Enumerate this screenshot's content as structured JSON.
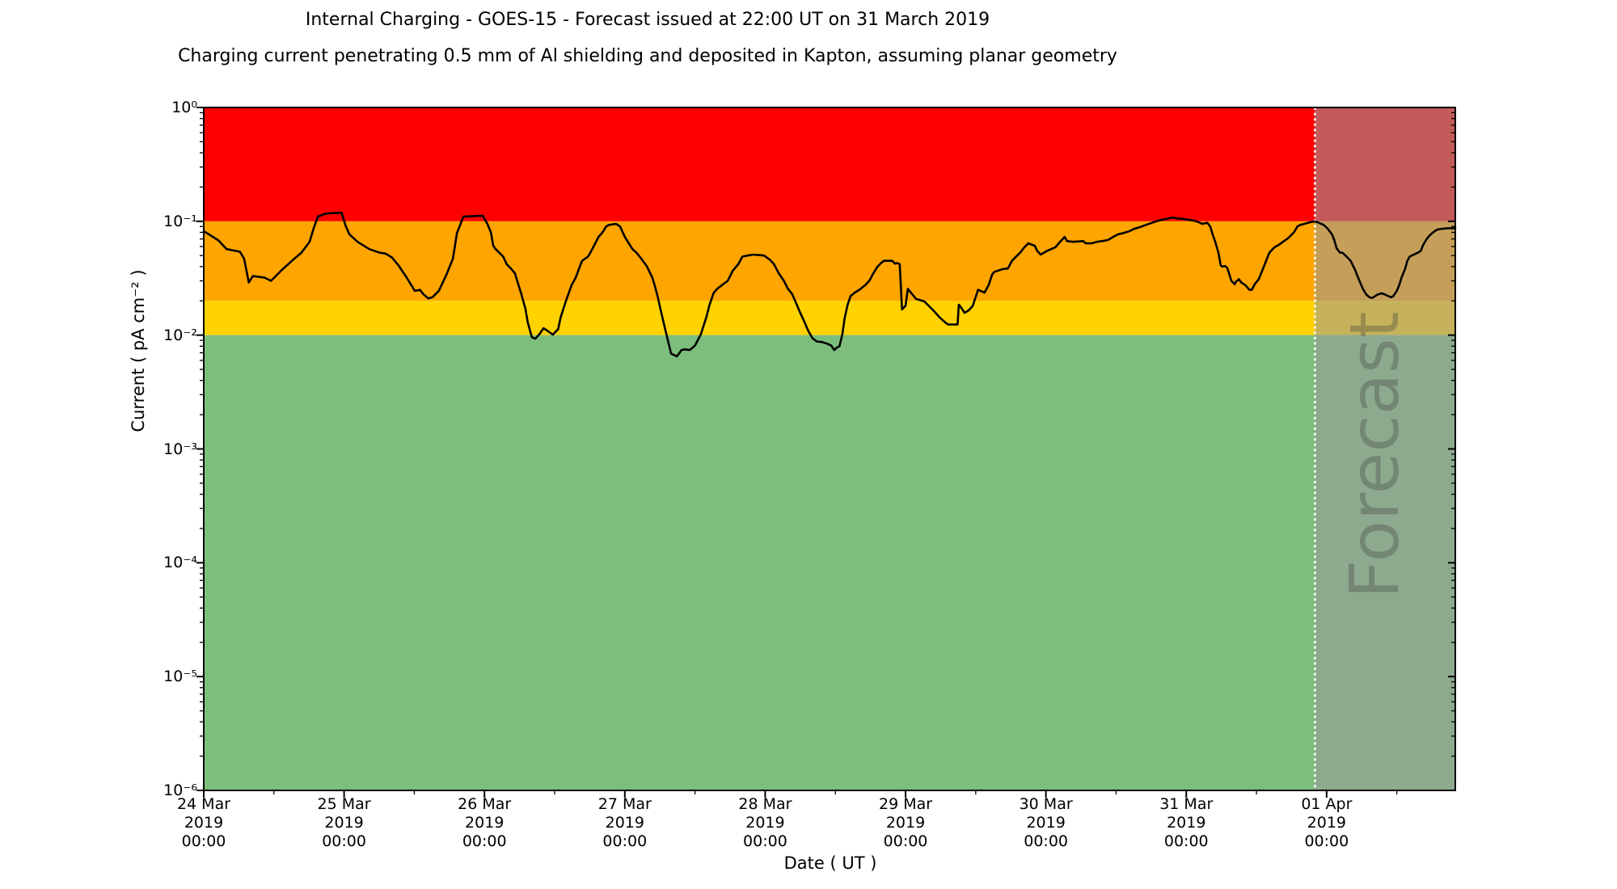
{
  "chart_data": {
    "type": "line",
    "title": "Internal Charging - GOES-15 - Forecast issued at 22:00 UT on 31 March 2019",
    "subtitle": "Charging current penetrating 0.5 mm of Al shielding and deposited in Kapton, assuming planar geometry",
    "xlabel": "Date ( UT )",
    "ylabel": "Current ( pA cm⁻² )",
    "y_scale": "log",
    "ylim": [
      1e-06,
      1
    ],
    "x_start": "24 Mar 2019 00:00 UT",
    "x_end": "01 Apr 2019 22:00 UT",
    "x_range_hours": 214,
    "grid": "off",
    "legend": "none",
    "y_ticks": [
      {
        "value": 1,
        "label": "10⁰"
      },
      {
        "value": 0.1,
        "label": "10⁻¹"
      },
      {
        "value": 0.01,
        "label": "10⁻²"
      },
      {
        "value": 0.001,
        "label": "10⁻³"
      },
      {
        "value": 0.0001,
        "label": "10⁻⁴"
      },
      {
        "value": 1e-05,
        "label": "10⁻⁵"
      },
      {
        "value": 1e-06,
        "label": "10⁻⁶"
      }
    ],
    "x_ticks": [
      {
        "hours": 0,
        "lines": [
          "24 Mar",
          "2019",
          "00:00"
        ]
      },
      {
        "hours": 24,
        "lines": [
          "25 Mar",
          "2019",
          "00:00"
        ]
      },
      {
        "hours": 48,
        "lines": [
          "26 Mar",
          "2019",
          "00:00"
        ]
      },
      {
        "hours": 72,
        "lines": [
          "27 Mar",
          "2019",
          "00:00"
        ]
      },
      {
        "hours": 96,
        "lines": [
          "28 Mar",
          "2019",
          "00:00"
        ]
      },
      {
        "hours": 120,
        "lines": [
          "29 Mar",
          "2019",
          "00:00"
        ]
      },
      {
        "hours": 144,
        "lines": [
          "30 Mar",
          "2019",
          "00:00"
        ]
      },
      {
        "hours": 168,
        "lines": [
          "31 Mar",
          "2019",
          "00:00"
        ]
      },
      {
        "hours": 192,
        "lines": [
          "01 Apr",
          "2019",
          "00:00"
        ]
      }
    ],
    "x_minor_tick_hours": [
      12,
      36,
      60,
      84,
      108,
      132,
      156,
      180,
      204
    ],
    "bands": [
      {
        "name": "red",
        "range": [
          0.1,
          1
        ],
        "color": "#ff0000"
      },
      {
        "name": "orange",
        "range": [
          0.02,
          0.1
        ],
        "color": "#ffa500"
      },
      {
        "name": "yellow",
        "range": [
          0.01,
          0.02
        ],
        "color": "#ffd200"
      },
      {
        "name": "green",
        "range": [
          1e-06,
          0.01
        ],
        "color": "#7dbe7d"
      }
    ],
    "forecast": {
      "label": "Forecast",
      "start_hours": 190,
      "start_time": "31 Mar 2019 22:00 UT",
      "overlay_color": "rgba(155,155,155,0.58)",
      "divider_color": "#ffffff",
      "watermark_color": "rgba(60,60,60,0.32)"
    },
    "series": [
      {
        "name": "Charging current",
        "color": "#000000",
        "points": [
          [
            0,
            0.082
          ],
          [
            2.5,
            0.068
          ],
          [
            3.9,
            0.057
          ],
          [
            6.2,
            0.054
          ],
          [
            6.9,
            0.047
          ],
          [
            7.3,
            0.037
          ],
          [
            7.7,
            0.029
          ],
          [
            8.4,
            0.033
          ],
          [
            10.4,
            0.032
          ],
          [
            11.5,
            0.03
          ],
          [
            13.5,
            0.038
          ],
          [
            15.3,
            0.046
          ],
          [
            16.7,
            0.053
          ],
          [
            17.7,
            0.062
          ],
          [
            18.1,
            0.066
          ],
          [
            18.8,
            0.087
          ],
          [
            19.5,
            0.11
          ],
          [
            20.9,
            0.117
          ],
          [
            23.6,
            0.119
          ],
          [
            24.2,
            0.093
          ],
          [
            24.9,
            0.077
          ],
          [
            26.3,
            0.066
          ],
          [
            28.3,
            0.057
          ],
          [
            30.1,
            0.053
          ],
          [
            31.1,
            0.052
          ],
          [
            32.2,
            0.048
          ],
          [
            33.3,
            0.041
          ],
          [
            34.7,
            0.032
          ],
          [
            36.1,
            0.0245
          ],
          [
            37,
            0.025
          ],
          [
            37.5,
            0.023
          ],
          [
            38.4,
            0.021
          ],
          [
            39.1,
            0.0215
          ],
          [
            40.2,
            0.0245
          ],
          [
            41.5,
            0.034
          ],
          [
            42.6,
            0.047
          ],
          [
            43.3,
            0.079
          ],
          [
            44.4,
            0.11
          ],
          [
            47.7,
            0.112
          ],
          [
            48.5,
            0.095
          ],
          [
            49.1,
            0.08
          ],
          [
            49.5,
            0.061
          ],
          [
            49.9,
            0.057
          ],
          [
            51.2,
            0.049
          ],
          [
            51.8,
            0.042
          ],
          [
            52.5,
            0.0385
          ],
          [
            53.2,
            0.035
          ],
          [
            53.6,
            0.03
          ],
          [
            54.3,
            0.023
          ],
          [
            55,
            0.017
          ],
          [
            55.4,
            0.013
          ],
          [
            56.1,
            0.0096
          ],
          [
            56.7,
            0.0093
          ],
          [
            57.4,
            0.0102
          ],
          [
            58.1,
            0.0115
          ],
          [
            58.9,
            0.0108
          ],
          [
            59.7,
            0.0101
          ],
          [
            60.6,
            0.0113
          ],
          [
            61,
            0.0142
          ],
          [
            61.9,
            0.0198
          ],
          [
            62.9,
            0.0275
          ],
          [
            63.6,
            0.032
          ],
          [
            64.3,
            0.04
          ],
          [
            64.7,
            0.045
          ],
          [
            65.7,
            0.049
          ],
          [
            66.1,
            0.053
          ],
          [
            66.8,
            0.062
          ],
          [
            67.5,
            0.073
          ],
          [
            68.2,
            0.08
          ],
          [
            68.8,
            0.09
          ],
          [
            69.3,
            0.093
          ],
          [
            70.5,
            0.095
          ],
          [
            71.2,
            0.09
          ],
          [
            72,
            0.073
          ],
          [
            72.6,
            0.065
          ],
          [
            73.3,
            0.057
          ],
          [
            74,
            0.053
          ],
          [
            74.8,
            0.047
          ],
          [
            75.8,
            0.04
          ],
          [
            76.7,
            0.032
          ],
          [
            77.1,
            0.0275
          ],
          [
            77.6,
            0.022
          ],
          [
            78.2,
            0.016
          ],
          [
            78.9,
            0.0113
          ],
          [
            79.5,
            0.0084
          ],
          [
            79.9,
            0.0069
          ],
          [
            80.9,
            0.0065
          ],
          [
            81.7,
            0.0074
          ],
          [
            82.2,
            0.0075
          ],
          [
            83.1,
            0.0074
          ],
          [
            84,
            0.0081
          ],
          [
            85,
            0.0102
          ],
          [
            85.9,
            0.0142
          ],
          [
            86.5,
            0.0185
          ],
          [
            87.2,
            0.0236
          ],
          [
            87.8,
            0.0255
          ],
          [
            88.6,
            0.0275
          ],
          [
            89.6,
            0.03
          ],
          [
            90.5,
            0.037
          ],
          [
            91.4,
            0.042
          ],
          [
            92.1,
            0.049
          ],
          [
            93,
            0.05
          ],
          [
            94,
            0.051
          ],
          [
            95.8,
            0.05
          ],
          [
            96.8,
            0.046
          ],
          [
            97.5,
            0.042
          ],
          [
            98.3,
            0.035
          ],
          [
            99.2,
            0.03
          ],
          [
            99.9,
            0.0255
          ],
          [
            100.6,
            0.023
          ],
          [
            101.3,
            0.019
          ],
          [
            102,
            0.0157
          ],
          [
            102.7,
            0.0131
          ],
          [
            103.4,
            0.0108
          ],
          [
            104.1,
            0.0094
          ],
          [
            104.8,
            0.0088
          ],
          [
            105.7,
            0.0087
          ],
          [
            106.6,
            0.0084
          ],
          [
            107.3,
            0.0081
          ],
          [
            107.8,
            0.0074
          ],
          [
            108.3,
            0.0078
          ],
          [
            108.7,
            0.008
          ],
          [
            109.2,
            0.0102
          ],
          [
            109.6,
            0.0142
          ],
          [
            110.1,
            0.0185
          ],
          [
            110.6,
            0.022
          ],
          [
            111.3,
            0.0236
          ],
          [
            112.1,
            0.025
          ],
          [
            113.1,
            0.0275
          ],
          [
            113.8,
            0.03
          ],
          [
            114.5,
            0.035
          ],
          [
            115.2,
            0.04
          ],
          [
            115.8,
            0.043
          ],
          [
            116.3,
            0.045
          ],
          [
            117.7,
            0.045
          ],
          [
            118.2,
            0.0425
          ],
          [
            118.6,
            0.043
          ],
          [
            119,
            0.042
          ],
          [
            119.4,
            0.0168
          ],
          [
            120,
            0.0181
          ],
          [
            120.4,
            0.0255
          ],
          [
            121.8,
            0.0208
          ],
          [
            123.2,
            0.0198
          ],
          [
            124.6,
            0.0168
          ],
          [
            125.9,
            0.0142
          ],
          [
            126.9,
            0.0128
          ],
          [
            127.3,
            0.0124
          ],
          [
            128.9,
            0.0124
          ],
          [
            129.1,
            0.0185
          ],
          [
            129.4,
            0.0178
          ],
          [
            130.1,
            0.0157
          ],
          [
            130.8,
            0.0165
          ],
          [
            131.5,
            0.0181
          ],
          [
            132.4,
            0.025
          ],
          [
            133.5,
            0.0236
          ],
          [
            134.2,
            0.0275
          ],
          [
            134.8,
            0.034
          ],
          [
            135.2,
            0.036
          ],
          [
            136.6,
            0.038
          ],
          [
            137.5,
            0.0385
          ],
          [
            138.2,
            0.045
          ],
          [
            138.9,
            0.049
          ],
          [
            139.6,
            0.053
          ],
          [
            140.3,
            0.059
          ],
          [
            141,
            0.064
          ],
          [
            142.1,
            0.061
          ],
          [
            142.5,
            0.055
          ],
          [
            143.1,
            0.051
          ],
          [
            144.2,
            0.055
          ],
          [
            144.9,
            0.057
          ],
          [
            145.6,
            0.059
          ],
          [
            146.3,
            0.065
          ],
          [
            147.2,
            0.073
          ],
          [
            147.6,
            0.067
          ],
          [
            148.6,
            0.066
          ],
          [
            150.4,
            0.067
          ],
          [
            150.8,
            0.064
          ],
          [
            151.8,
            0.064
          ],
          [
            152.7,
            0.066
          ],
          [
            153.6,
            0.067
          ],
          [
            154.6,
            0.0685
          ],
          [
            155.5,
            0.073
          ],
          [
            156.4,
            0.077
          ],
          [
            157.3,
            0.079
          ],
          [
            158.3,
            0.082
          ],
          [
            159.1,
            0.086
          ],
          [
            160.1,
            0.089
          ],
          [
            161.1,
            0.093
          ],
          [
            161.9,
            0.096
          ],
          [
            162.9,
            0.1
          ],
          [
            163.8,
            0.103
          ],
          [
            164.7,
            0.105
          ],
          [
            165.6,
            0.108
          ],
          [
            166.6,
            0.106
          ],
          [
            167.4,
            0.105
          ],
          [
            168.4,
            0.103
          ],
          [
            169.4,
            0.101
          ],
          [
            170.2,
            0.098
          ],
          [
            170.7,
            0.095
          ],
          [
            171.6,
            0.097
          ],
          [
            172.1,
            0.09
          ],
          [
            172.5,
            0.077
          ],
          [
            173,
            0.065
          ],
          [
            173.5,
            0.053
          ],
          [
            173.9,
            0.041
          ],
          [
            174.2,
            0.04
          ],
          [
            174.6,
            0.0405
          ],
          [
            175,
            0.039
          ],
          [
            175.3,
            0.035
          ],
          [
            175.7,
            0.03
          ],
          [
            176.3,
            0.028
          ],
          [
            176.5,
            0.0295
          ],
          [
            177,
            0.031
          ],
          [
            177.4,
            0.029
          ],
          [
            178.1,
            0.0275
          ],
          [
            178.8,
            0.025
          ],
          [
            179.2,
            0.025
          ],
          [
            179.7,
            0.028
          ],
          [
            180.4,
            0.031
          ],
          [
            181.1,
            0.038
          ],
          [
            181.8,
            0.047
          ],
          [
            182.2,
            0.053
          ],
          [
            182.9,
            0.058
          ],
          [
            183.3,
            0.06
          ],
          [
            184,
            0.063
          ],
          [
            184.7,
            0.067
          ],
          [
            185.4,
            0.071
          ],
          [
            186.4,
            0.08
          ],
          [
            187,
            0.09
          ],
          [
            187.5,
            0.093
          ],
          [
            188.2,
            0.095
          ],
          [
            189.1,
            0.098
          ],
          [
            190,
            0.0997
          ],
          [
            190.5,
            0.098
          ],
          [
            191.5,
            0.093
          ],
          [
            192.2,
            0.086
          ],
          [
            192.9,
            0.077
          ],
          [
            193.3,
            0.0685
          ],
          [
            193.7,
            0.058
          ],
          [
            194.3,
            0.053
          ],
          [
            194.7,
            0.053
          ],
          [
            195.4,
            0.049
          ],
          [
            196.1,
            0.045
          ],
          [
            196.8,
            0.038
          ],
          [
            197.5,
            0.031
          ],
          [
            198.2,
            0.0255
          ],
          [
            198.8,
            0.0227
          ],
          [
            199.3,
            0.0215
          ],
          [
            199.8,
            0.0212
          ],
          [
            200.7,
            0.0227
          ],
          [
            201.4,
            0.0233
          ],
          [
            202,
            0.0227
          ],
          [
            203,
            0.0215
          ],
          [
            203.4,
            0.022
          ],
          [
            204,
            0.0245
          ],
          [
            204.4,
            0.0275
          ],
          [
            204.8,
            0.032
          ],
          [
            205.4,
            0.038
          ],
          [
            205.8,
            0.045
          ],
          [
            206.2,
            0.049
          ],
          [
            206.9,
            0.051
          ],
          [
            207.6,
            0.053
          ],
          [
            208.1,
            0.055
          ],
          [
            208.5,
            0.062
          ],
          [
            209,
            0.0685
          ],
          [
            209.5,
            0.074
          ],
          [
            210.2,
            0.08
          ],
          [
            210.9,
            0.0845
          ],
          [
            211.7,
            0.086
          ],
          [
            212.7,
            0.087
          ],
          [
            214,
            0.087
          ]
        ]
      }
    ]
  }
}
